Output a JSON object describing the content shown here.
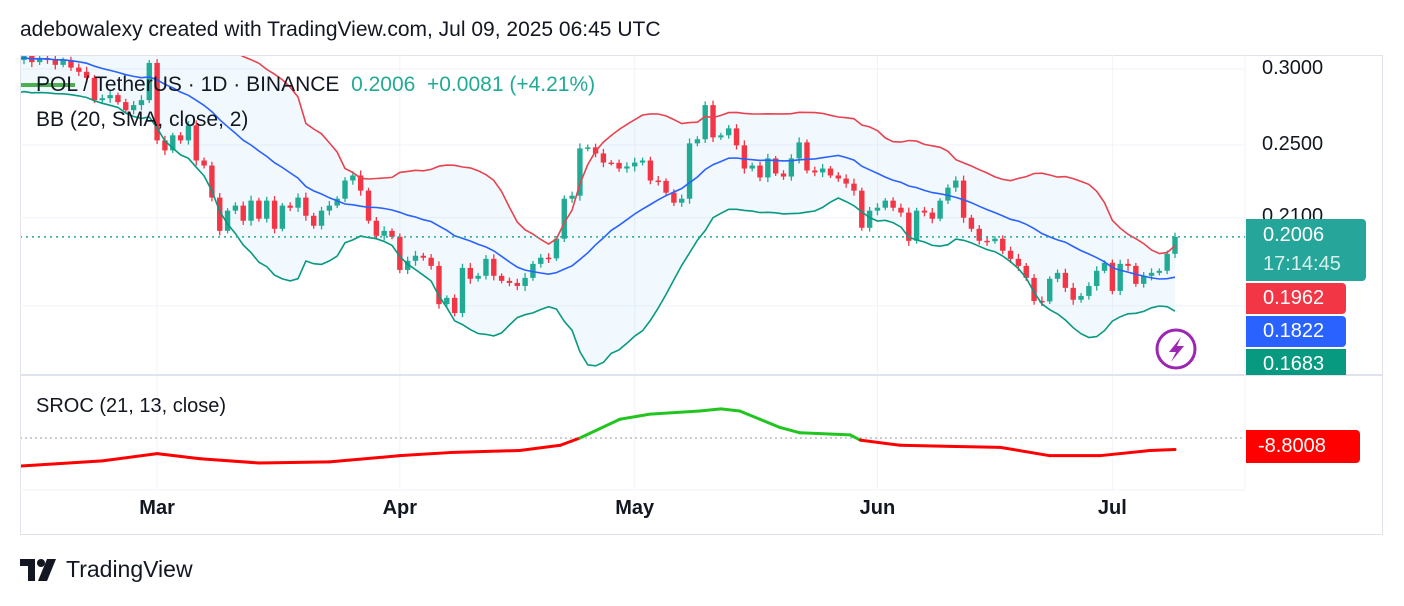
{
  "header": {
    "attribution": "adebowalexy created with TradingView.com, Jul 09, 2025 06:45 UTC"
  },
  "legend": {
    "symbol": "POL / TetherUS · 1D · BINANCE",
    "price": "0.2006",
    "change": "+0.0081 (+4.21%)",
    "bb": "BB (20, SMA, close, 2)",
    "sroc": "SROC (21, 13, close)"
  },
  "price_axis": {
    "ticks": [
      {
        "label": "0.3000",
        "value": 0.3
      },
      {
        "label": "0.2500",
        "value": 0.25
      },
      {
        "label": "0.2100",
        "value": 0.21
      }
    ],
    "grid_values": [
      0.3,
      0.25,
      0.21,
      0.17
    ]
  },
  "tags": {
    "last_price": "0.2006",
    "countdown": "17:14:45",
    "bb_upper": "0.1962",
    "bb_basis": "0.1822",
    "bb_lower": "0.1683",
    "sroc": "-8.8008"
  },
  "time_axis": [
    {
      "label": "Mar",
      "days_before_last": 130
    },
    {
      "label": "Apr",
      "days_before_last": 99
    },
    {
      "label": "May",
      "days_before_last": 69
    },
    {
      "label": "Jun",
      "days_before_last": 38
    },
    {
      "label": "Jul",
      "days_before_last": 8
    }
  ],
  "footer": {
    "brand": "TradingView"
  },
  "icons": {
    "logo": "tradingview-logo",
    "alert": "lightning-icon"
  },
  "chart_data": {
    "type": "candlestick",
    "scale": "log",
    "ylim": [
      0.144,
      0.31
    ],
    "interval": "1D",
    "last_date": "2025-07-09",
    "colors": {
      "up": "#22ab94",
      "down": "#f23645",
      "bb_upper": "#e8424f",
      "bb_basis": "#2962ff",
      "bb_lower": "#089981",
      "sroc_pos": "#22c41f",
      "sroc_neg": "#ff0000",
      "last_price": "#22ab94"
    },
    "closes": [
      0.308,
      0.3065,
      0.31,
      0.305,
      0.308,
      0.3065,
      0.303,
      0.3065,
      0.301,
      0.298,
      0.2937,
      0.2784,
      0.2797,
      0.2818,
      0.2771,
      0.2718,
      0.2751,
      0.2784,
      0.3044,
      0.2528,
      0.2468,
      0.2559,
      0.2528,
      0.2621,
      0.2409,
      0.238,
      0.2204,
      0.2035,
      0.2136,
      0.2162,
      0.2085,
      0.2188,
      0.2095,
      0.2188,
      0.2045,
      0.2162,
      0.2151,
      0.2204,
      0.211,
      0.206,
      0.2136,
      0.2162,
      0.2198,
      0.2296,
      0.2324,
      0.2241,
      0.2085,
      0.2011,
      0.2035,
      0.2006,
      0.1853,
      0.1894,
      0.1917,
      0.1908,
      0.1871,
      0.1707,
      0.1733,
      0.1671,
      0.1862,
      0.1814,
      0.1827,
      0.1903,
      0.1827,
      0.1805,
      0.1796,
      0.1783,
      0.1818,
      0.188,
      0.1908,
      0.1905,
      0.1997,
      0.2198,
      0.2214,
      0.248,
      0.2486,
      0.245,
      0.2397,
      0.2395,
      0.2363,
      0.2375,
      0.2397,
      0.2409,
      0.2296,
      0.2294,
      0.223,
      0.2177,
      0.2198,
      0.251,
      0.2535,
      0.2751,
      0.2546,
      0.2559,
      0.2602,
      0.2498,
      0.2363,
      0.238,
      0.2313,
      0.2421,
      0.2335,
      0.2318,
      0.2421,
      0.2516,
      0.2352,
      0.2341,
      0.2363,
      0.2324,
      0.2307,
      0.2279,
      0.2241,
      0.205,
      0.2136,
      0.2151,
      0.2188,
      0.2151,
      0.2126,
      0.1987,
      0.2136,
      0.2126,
      0.2095,
      0.2188,
      0.2257,
      0.2296,
      0.21,
      0.2045,
      0.1987,
      0.1985,
      0.1997,
      0.194,
      0.1903,
      0.1871,
      0.1818,
      0.172,
      0.1718,
      0.1814,
      0.184,
      0.1775,
      0.1725,
      0.1741,
      0.1783,
      0.1849,
      0.1885,
      0.1762,
      0.188,
      0.1871,
      0.1792,
      0.1827,
      0.184,
      0.1849,
      0.1926,
      0.2006
    ],
    "sroc": [
      [
        147.5,
        -21.6
      ],
      [
        137,
        -17.6
      ],
      [
        130,
        -12
      ],
      [
        124.5,
        -16
      ],
      [
        117,
        -19.2
      ],
      [
        108,
        -18.4
      ],
      [
        99,
        -13.6
      ],
      [
        92.6,
        -11.2
      ],
      [
        83.7,
        -9.6
      ],
      [
        78.5,
        -5.6
      ],
      [
        76,
        0
      ],
      [
        70.9,
        14.4
      ],
      [
        67,
        18.4
      ],
      [
        60.7,
        20.8
      ],
      [
        58,
        22.4
      ],
      [
        55.6,
        20.8
      ],
      [
        50.4,
        8
      ],
      [
        47.9,
        4
      ],
      [
        41.5,
        2.4
      ],
      [
        40.2,
        -1.6
      ],
      [
        35.1,
        -5.6
      ],
      [
        28.7,
        -6.4
      ],
      [
        22.3,
        -7.2
      ],
      [
        16,
        -13.6
      ],
      [
        9.6,
        -13.6
      ],
      [
        3.2,
        -9.6
      ],
      [
        0,
        -8.8
      ]
    ]
  }
}
